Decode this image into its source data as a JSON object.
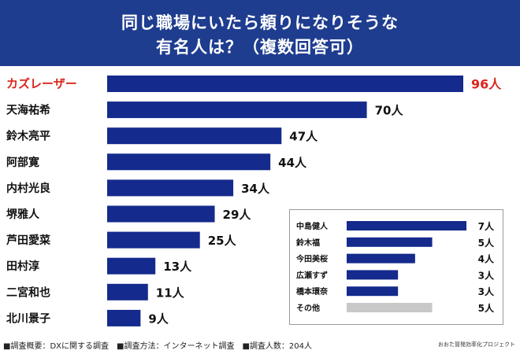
{
  "header": {
    "title_line1": "同じ職場にいたら頼りになりそうな",
    "title_line2": "有名人は？（複数回答可）"
  },
  "colors": {
    "header_bg": "#1e3d8f",
    "bar": "#142a8c",
    "highlight": "#d9241c",
    "other_bar": "#c8c8c8",
    "text": "#111111"
  },
  "chart_data": [
    {
      "type": "bar",
      "orientation": "horizontal",
      "categories": [
        "カズレーザー",
        "天海祐希",
        "鈴木亮平",
        "阿部寛",
        "内村光良",
        "堺雅人",
        "芦田愛菜",
        "田村淳",
        "二宮和也",
        "北川景子"
      ],
      "values": [
        96,
        70,
        47,
        44,
        34,
        29,
        25,
        13,
        11,
        9
      ],
      "value_labels": [
        "96人",
        "70人",
        "47人",
        "44人",
        "34人",
        "29人",
        "25人",
        "13人",
        "11人",
        "9人"
      ],
      "highlight_index": 0,
      "xlim": [
        0,
        96
      ]
    },
    {
      "type": "bar",
      "orientation": "horizontal",
      "categories": [
        "中島健人",
        "鈴木福",
        "今田美桜",
        "広瀬すず",
        "橋本環奈",
        "その他"
      ],
      "values": [
        7,
        5,
        4,
        3,
        3,
        5
      ],
      "value_labels": [
        "7人",
        "5人",
        "4人",
        "3人",
        "3人",
        "5人"
      ],
      "gray_index": 5,
      "xlim": [
        0,
        7
      ]
    }
  ],
  "footer": {
    "note": "■調査概要：DXに関する調査　■調査方法：インターネット調査　■調査人数：204人",
    "credit": "おおた冒発効率化プロジェクト"
  }
}
